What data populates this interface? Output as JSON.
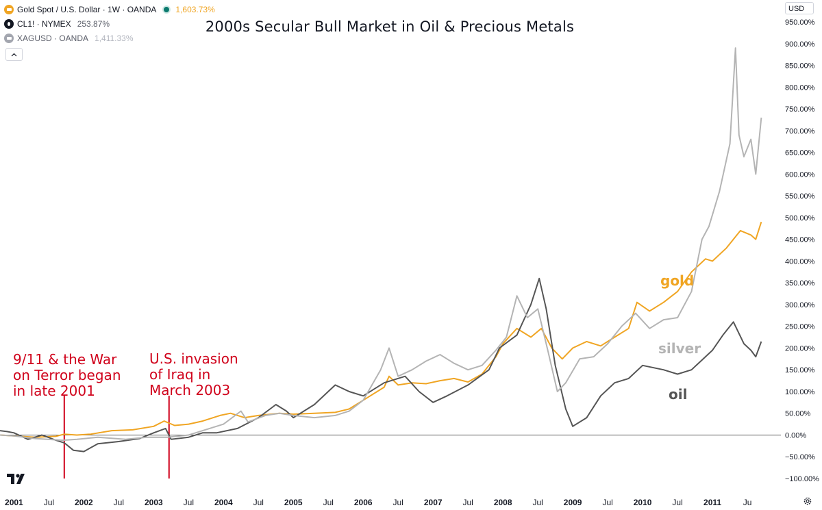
{
  "header": {
    "title": "2000s Secular Bull Market in Oil & Precious Metals",
    "currency": "USD"
  },
  "legend": [
    {
      "name": "Gold Spot / U.S. Dollar · 1W · OANDA",
      "pct": "1,603.73%",
      "color": "#f0a523",
      "pct_color": "#f0a523"
    },
    {
      "name": "CL1! · NYMEX",
      "pct": "253.87%",
      "color": "#131722",
      "pct_color": "#5d606b"
    },
    {
      "name": "XAGUSD · OANDA",
      "pct": "1,411.33%",
      "color": "#a3a6af",
      "pct_color": "#b2b5be"
    }
  ],
  "annotations": [
    {
      "text": [
        "9/11 & the War",
        "on Terror began",
        "in late 2001"
      ],
      "x": 2001.72
    },
    {
      "text": [
        "U.S. invasion",
        "of Iraq in",
        "March 2003"
      ],
      "x": 2003.22
    }
  ],
  "series_labels": [
    {
      "text": "gold",
      "color": "#f0a523"
    },
    {
      "text": "silver",
      "color": "#b4b4b4"
    },
    {
      "text": "oil",
      "color": "#555555"
    }
  ],
  "chart_data": {
    "type": "line",
    "title": "2000s Secular Bull Market in Oil & Precious Metals",
    "xlabel": "",
    "ylabel": "",
    "ylim": [
      -100,
      950
    ],
    "xlim": [
      2000.8,
      2011.98
    ],
    "grid": false,
    "yticks": [
      950,
      900,
      850,
      800,
      750,
      700,
      650,
      600,
      550,
      500,
      450,
      400,
      350,
      300,
      250,
      200,
      150,
      100,
      50,
      0,
      -50,
      -100
    ],
    "ytick_labels": [
      "950.00%",
      "900.00%",
      "850.00%",
      "800.00%",
      "750.00%",
      "700.00%",
      "650.00%",
      "600.00%",
      "550.00%",
      "500.00%",
      "450.00%",
      "400.00%",
      "350.00%",
      "300.00%",
      "250.00%",
      "200.00%",
      "150.00%",
      "100.00%",
      "50.00%",
      "0.00%",
      "−50.00%",
      "−100.00%"
    ],
    "xticks": [
      {
        "x": 2001.0,
        "label": "2001",
        "bold": true
      },
      {
        "x": 2001.5,
        "label": "Jul"
      },
      {
        "x": 2002.0,
        "label": "2002",
        "bold": true
      },
      {
        "x": 2002.5,
        "label": "Jul"
      },
      {
        "x": 2003.0,
        "label": "2003",
        "bold": true
      },
      {
        "x": 2003.5,
        "label": "Jul"
      },
      {
        "x": 2004.0,
        "label": "2004",
        "bold": true
      },
      {
        "x": 2004.5,
        "label": "Jul"
      },
      {
        "x": 2005.0,
        "label": "2005",
        "bold": true
      },
      {
        "x": 2005.5,
        "label": "Jul"
      },
      {
        "x": 2006.0,
        "label": "2006",
        "bold": true
      },
      {
        "x": 2006.5,
        "label": "Jul"
      },
      {
        "x": 2007.0,
        "label": "2007",
        "bold": true
      },
      {
        "x": 2007.5,
        "label": "Jul"
      },
      {
        "x": 2008.0,
        "label": "2008",
        "bold": true
      },
      {
        "x": 2008.5,
        "label": "Jul"
      },
      {
        "x": 2009.0,
        "label": "2009",
        "bold": true
      },
      {
        "x": 2009.5,
        "label": "Jul"
      },
      {
        "x": 2010.0,
        "label": "2010",
        "bold": true
      },
      {
        "x": 2010.5,
        "label": "Jul"
      },
      {
        "x": 2011.0,
        "label": "2011",
        "bold": true
      },
      {
        "x": 2011.5,
        "label": "Ju"
      }
    ],
    "series": [
      {
        "name": "Gold Spot / U.S. Dollar",
        "color": "#f0a523",
        "points": [
          [
            2000.8,
            0
          ],
          [
            2001.0,
            -2
          ],
          [
            2001.3,
            -5
          ],
          [
            2001.6,
            -3
          ],
          [
            2001.72,
            2
          ],
          [
            2001.9,
            0
          ],
          [
            2002.1,
            2
          ],
          [
            2002.4,
            10
          ],
          [
            2002.7,
            12
          ],
          [
            2003.0,
            20
          ],
          [
            2003.15,
            32
          ],
          [
            2003.3,
            22
          ],
          [
            2003.5,
            25
          ],
          [
            2003.7,
            32
          ],
          [
            2003.95,
            45
          ],
          [
            2004.1,
            50
          ],
          [
            2004.3,
            40
          ],
          [
            2004.5,
            45
          ],
          [
            2004.8,
            50
          ],
          [
            2005.0,
            48
          ],
          [
            2005.3,
            50
          ],
          [
            2005.6,
            52
          ],
          [
            2005.8,
            60
          ],
          [
            2006.0,
            80
          ],
          [
            2006.3,
            110
          ],
          [
            2006.37,
            135
          ],
          [
            2006.5,
            115
          ],
          [
            2006.7,
            120
          ],
          [
            2006.9,
            118
          ],
          [
            2007.1,
            125
          ],
          [
            2007.3,
            130
          ],
          [
            2007.5,
            122
          ],
          [
            2007.7,
            140
          ],
          [
            2007.9,
            180
          ],
          [
            2008.0,
            210
          ],
          [
            2008.2,
            245
          ],
          [
            2008.4,
            225
          ],
          [
            2008.55,
            245
          ],
          [
            2008.7,
            200
          ],
          [
            2008.85,
            175
          ],
          [
            2009.0,
            200
          ],
          [
            2009.2,
            215
          ],
          [
            2009.4,
            205
          ],
          [
            2009.6,
            225
          ],
          [
            2009.8,
            245
          ],
          [
            2009.92,
            305
          ],
          [
            2010.1,
            285
          ],
          [
            2010.3,
            305
          ],
          [
            2010.5,
            330
          ],
          [
            2010.7,
            375
          ],
          [
            2010.9,
            405
          ],
          [
            2011.0,
            400
          ],
          [
            2011.2,
            430
          ],
          [
            2011.4,
            470
          ],
          [
            2011.55,
            460
          ],
          [
            2011.62,
            450
          ],
          [
            2011.7,
            490
          ]
        ]
      },
      {
        "name": "CL1! · NYMEX",
        "color": "#555555",
        "points": [
          [
            2000.8,
            10
          ],
          [
            2000.9,
            8
          ],
          [
            2001.0,
            5
          ],
          [
            2001.2,
            -10
          ],
          [
            2001.4,
            0
          ],
          [
            2001.6,
            -12
          ],
          [
            2001.72,
            -18
          ],
          [
            2001.85,
            -35
          ],
          [
            2002.0,
            -38
          ],
          [
            2002.2,
            -20
          ],
          [
            2002.5,
            -15
          ],
          [
            2002.8,
            -8
          ],
          [
            2003.0,
            5
          ],
          [
            2003.17,
            15
          ],
          [
            2003.25,
            -10
          ],
          [
            2003.5,
            -5
          ],
          [
            2003.7,
            5
          ],
          [
            2003.9,
            5
          ],
          [
            2004.2,
            15
          ],
          [
            2004.5,
            40
          ],
          [
            2004.75,
            70
          ],
          [
            2004.9,
            55
          ],
          [
            2005.0,
            40
          ],
          [
            2005.3,
            70
          ],
          [
            2005.6,
            115
          ],
          [
            2005.8,
            100
          ],
          [
            2006.0,
            90
          ],
          [
            2006.3,
            120
          ],
          [
            2006.6,
            135
          ],
          [
            2006.8,
            100
          ],
          [
            2007.0,
            75
          ],
          [
            2007.2,
            90
          ],
          [
            2007.5,
            115
          ],
          [
            2007.8,
            150
          ],
          [
            2007.95,
            200
          ],
          [
            2008.2,
            230
          ],
          [
            2008.4,
            300
          ],
          [
            2008.52,
            360
          ],
          [
            2008.62,
            290
          ],
          [
            2008.75,
            160
          ],
          [
            2008.9,
            60
          ],
          [
            2009.0,
            20
          ],
          [
            2009.2,
            40
          ],
          [
            2009.4,
            90
          ],
          [
            2009.6,
            120
          ],
          [
            2009.8,
            130
          ],
          [
            2010.0,
            160
          ],
          [
            2010.3,
            150
          ],
          [
            2010.5,
            140
          ],
          [
            2010.7,
            150
          ],
          [
            2010.9,
            180
          ],
          [
            2011.0,
            195
          ],
          [
            2011.15,
            230
          ],
          [
            2011.3,
            260
          ],
          [
            2011.45,
            210
          ],
          [
            2011.55,
            195
          ],
          [
            2011.62,
            180
          ],
          [
            2011.7,
            215
          ]
        ]
      },
      {
        "name": "XAGUSD · OANDA",
        "color": "#b4b4b4",
        "points": [
          [
            2000.8,
            0
          ],
          [
            2001.0,
            -2
          ],
          [
            2001.3,
            -8
          ],
          [
            2001.7,
            -12
          ],
          [
            2001.9,
            -10
          ],
          [
            2002.2,
            -5
          ],
          [
            2002.6,
            -10
          ],
          [
            2002.9,
            -5
          ],
          [
            2003.2,
            -5
          ],
          [
            2003.5,
            0
          ],
          [
            2003.8,
            15
          ],
          [
            2004.0,
            25
          ],
          [
            2004.25,
            55
          ],
          [
            2004.35,
            30
          ],
          [
            2004.6,
            45
          ],
          [
            2004.8,
            50
          ],
          [
            2005.0,
            45
          ],
          [
            2005.3,
            40
          ],
          [
            2005.6,
            45
          ],
          [
            2005.8,
            55
          ],
          [
            2006.0,
            80
          ],
          [
            2006.25,
            150
          ],
          [
            2006.37,
            200
          ],
          [
            2006.5,
            135
          ],
          [
            2006.7,
            150
          ],
          [
            2006.9,
            170
          ],
          [
            2007.1,
            185
          ],
          [
            2007.3,
            165
          ],
          [
            2007.5,
            150
          ],
          [
            2007.7,
            160
          ],
          [
            2007.9,
            195
          ],
          [
            2008.05,
            225
          ],
          [
            2008.2,
            320
          ],
          [
            2008.35,
            270
          ],
          [
            2008.5,
            290
          ],
          [
            2008.65,
            190
          ],
          [
            2008.78,
            100
          ],
          [
            2008.9,
            120
          ],
          [
            2009.1,
            175
          ],
          [
            2009.3,
            180
          ],
          [
            2009.5,
            210
          ],
          [
            2009.7,
            250
          ],
          [
            2009.9,
            280
          ],
          [
            2010.1,
            245
          ],
          [
            2010.3,
            265
          ],
          [
            2010.5,
            270
          ],
          [
            2010.7,
            330
          ],
          [
            2010.85,
            450
          ],
          [
            2010.95,
            480
          ],
          [
            2011.1,
            560
          ],
          [
            2011.25,
            670
          ],
          [
            2011.33,
            890
          ],
          [
            2011.38,
            690
          ],
          [
            2011.45,
            640
          ],
          [
            2011.55,
            680
          ],
          [
            2011.62,
            600
          ],
          [
            2011.7,
            730
          ]
        ]
      }
    ]
  }
}
